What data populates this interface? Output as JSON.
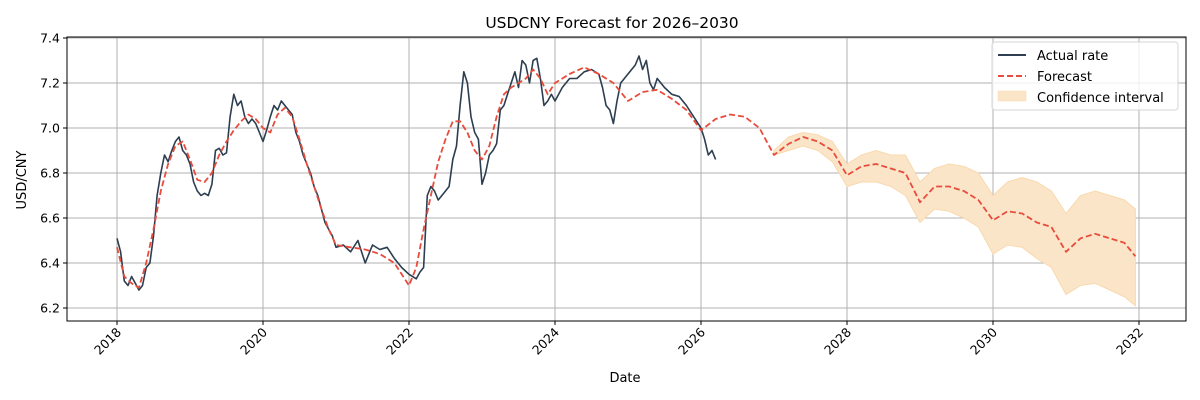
{
  "chart_data": {
    "type": "line",
    "title": "USDCNY Forecast for 2026–2030",
    "xlabel": "Date",
    "ylabel": "USD/CNY",
    "xlim": [
      2017.3,
      2032.6
    ],
    "ylim": [
      6.14,
      7.41
    ],
    "xticks": [
      2018,
      2020,
      2022,
      2024,
      2026,
      2028,
      2030,
      2032
    ],
    "yticks": [
      6.2,
      6.4,
      6.6,
      6.8,
      7.0,
      7.2,
      7.4
    ],
    "ytick_labels": [
      "6.2",
      "6.4",
      "6.6",
      "6.8",
      "7.0",
      "7.2",
      "7.4"
    ],
    "grid": true,
    "legend": {
      "position": "upper right",
      "entries": [
        "Actual rate",
        "Forecast",
        "Confidence interval"
      ]
    },
    "colors": {
      "actual": "#2c3e50",
      "forecast": "#e74c3c",
      "confidence": "#fbe5c8",
      "confidence_edge": "#f9d9ad",
      "grid": "#b0b0b0"
    },
    "series": [
      {
        "name": "Actual rate",
        "style": "solid",
        "x": [
          2018.0,
          2018.05,
          2018.1,
          2018.15,
          2018.2,
          2018.25,
          2018.3,
          2018.35,
          2018.4,
          2018.45,
          2018.5,
          2018.55,
          2018.6,
          2018.65,
          2018.7,
          2018.75,
          2018.8,
          2018.85,
          2018.9,
          2018.95,
          2019.0,
          2019.05,
          2019.1,
          2019.15,
          2019.2,
          2019.25,
          2019.3,
          2019.35,
          2019.4,
          2019.45,
          2019.5,
          2019.55,
          2019.6,
          2019.65,
          2019.7,
          2019.75,
          2019.8,
          2019.85,
          2019.9,
          2019.95,
          2020.0,
          2020.05,
          2020.1,
          2020.15,
          2020.2,
          2020.25,
          2020.3,
          2020.35,
          2020.4,
          2020.45,
          2020.5,
          2020.55,
          2020.6,
          2020.65,
          2020.7,
          2020.75,
          2020.8,
          2020.85,
          2020.9,
          2020.95,
          2021.0,
          2021.1,
          2021.2,
          2021.3,
          2021.4,
          2021.5,
          2021.6,
          2021.7,
          2021.8,
          2021.9,
          2022.0,
          2022.1,
          2022.15,
          2022.2,
          2022.25,
          2022.3,
          2022.35,
          2022.4,
          2022.45,
          2022.5,
          2022.55,
          2022.6,
          2022.65,
          2022.7,
          2022.75,
          2022.8,
          2022.85,
          2022.9,
          2022.95,
          2023.0,
          2023.05,
          2023.1,
          2023.15,
          2023.2,
          2023.25,
          2023.3,
          2023.35,
          2023.4,
          2023.45,
          2023.5,
          2023.55,
          2023.6,
          2023.65,
          2023.7,
          2023.75,
          2023.8,
          2023.85,
          2023.9,
          2023.95,
          2024.0,
          2024.1,
          2024.2,
          2024.3,
          2024.4,
          2024.5,
          2024.6,
          2024.65,
          2024.7,
          2024.75,
          2024.8,
          2024.85,
          2024.9,
          2025.0,
          2025.1,
          2025.15,
          2025.2,
          2025.25,
          2025.3,
          2025.35,
          2025.4,
          2025.5,
          2025.6,
          2025.7,
          2025.8,
          2025.9,
          2026.0,
          2026.05,
          2026.1,
          2026.15,
          2026.2
        ],
        "y": [
          6.51,
          6.45,
          6.32,
          6.3,
          6.34,
          6.31,
          6.28,
          6.3,
          6.38,
          6.4,
          6.52,
          6.7,
          6.8,
          6.88,
          6.85,
          6.9,
          6.94,
          6.96,
          6.9,
          6.88,
          6.84,
          6.76,
          6.72,
          6.7,
          6.71,
          6.7,
          6.75,
          6.9,
          6.91,
          6.88,
          6.89,
          7.05,
          7.15,
          7.1,
          7.12,
          7.05,
          7.02,
          7.04,
          7.02,
          6.98,
          6.94,
          6.99,
          7.05,
          7.1,
          7.08,
          7.12,
          7.1,
          7.08,
          7.06,
          6.98,
          6.94,
          6.88,
          6.84,
          6.8,
          6.74,
          6.7,
          6.64,
          6.58,
          6.55,
          6.52,
          6.47,
          6.48,
          6.45,
          6.5,
          6.4,
          6.48,
          6.46,
          6.47,
          6.42,
          6.38,
          6.35,
          6.33,
          6.36,
          6.38,
          6.7,
          6.74,
          6.72,
          6.68,
          6.7,
          6.72,
          6.74,
          6.86,
          6.92,
          7.1,
          7.25,
          7.2,
          7.05,
          6.98,
          6.95,
          6.75,
          6.8,
          6.88,
          6.9,
          6.93,
          7.08,
          7.1,
          7.15,
          7.2,
          7.25,
          7.18,
          7.3,
          7.28,
          7.2,
          7.3,
          7.31,
          7.22,
          7.1,
          7.12,
          7.15,
          7.12,
          7.18,
          7.22,
          7.22,
          7.25,
          7.26,
          7.24,
          7.18,
          7.1,
          7.08,
          7.02,
          7.12,
          7.2,
          7.24,
          7.28,
          7.32,
          7.26,
          7.3,
          7.2,
          7.17,
          7.22,
          7.18,
          7.15,
          7.14,
          7.1,
          7.05,
          7.0,
          6.95,
          6.88,
          6.9,
          6.86
        ]
      },
      {
        "name": "Forecast",
        "style": "dashed",
        "x": [
          2018.0,
          2018.1,
          2018.2,
          2018.3,
          2018.4,
          2018.5,
          2018.6,
          2018.7,
          2018.8,
          2018.9,
          2019.0,
          2019.1,
          2019.2,
          2019.3,
          2019.4,
          2019.5,
          2019.6,
          2019.7,
          2019.8,
          2019.9,
          2020.0,
          2020.1,
          2020.2,
          2020.3,
          2020.4,
          2020.5,
          2020.6,
          2020.7,
          2020.8,
          2020.9,
          2021.0,
          2021.2,
          2021.4,
          2021.6,
          2021.8,
          2022.0,
          2022.1,
          2022.2,
          2022.3,
          2022.4,
          2022.5,
          2022.6,
          2022.7,
          2022.8,
          2022.9,
          2023.0,
          2023.1,
          2023.2,
          2023.3,
          2023.4,
          2023.5,
          2023.6,
          2023.7,
          2023.8,
          2023.9,
          2024.0,
          2024.2,
          2024.4,
          2024.6,
          2024.8,
          2025.0,
          2025.2,
          2025.4,
          2025.6,
          2025.8,
          2026.0,
          2026.2,
          2026.4,
          2026.6,
          2026.8,
          2027.0,
          2027.2,
          2027.4,
          2027.6,
          2027.8,
          2028.0,
          2028.2,
          2028.4,
          2028.6,
          2028.8,
          2029.0,
          2029.2,
          2029.4,
          2029.6,
          2029.8,
          2030.0,
          2030.2,
          2030.4,
          2030.6,
          2030.8,
          2031.0,
          2031.2,
          2031.4,
          2031.6,
          2031.8,
          2031.95
        ],
        "y": [
          6.47,
          6.34,
          6.31,
          6.29,
          6.4,
          6.55,
          6.72,
          6.84,
          6.92,
          6.94,
          6.86,
          6.77,
          6.76,
          6.8,
          6.88,
          6.94,
          6.99,
          7.03,
          7.06,
          7.04,
          7.0,
          6.98,
          7.06,
          7.09,
          7.05,
          6.95,
          6.84,
          6.74,
          6.64,
          6.55,
          6.48,
          6.47,
          6.46,
          6.44,
          6.4,
          6.3,
          6.38,
          6.55,
          6.7,
          6.85,
          6.95,
          7.03,
          7.03,
          6.98,
          6.9,
          6.86,
          6.92,
          7.05,
          7.15,
          7.18,
          7.2,
          7.22,
          7.26,
          7.22,
          7.15,
          7.2,
          7.24,
          7.27,
          7.24,
          7.2,
          7.12,
          7.16,
          7.17,
          7.13,
          7.08,
          6.99,
          7.04,
          7.06,
          7.05,
          7.0,
          6.88,
          6.93,
          6.96,
          6.94,
          6.9,
          6.79,
          6.83,
          6.84,
          6.82,
          6.8,
          6.67,
          6.74,
          6.74,
          6.72,
          6.68,
          6.59,
          6.63,
          6.62,
          6.58,
          6.56,
          6.45,
          6.51,
          6.53,
          6.51,
          6.49,
          6.43
        ]
      }
    ],
    "confidence_interval": {
      "name": "Confidence interval",
      "x": [
        2027.0,
        2027.2,
        2027.4,
        2027.6,
        2027.8,
        2028.0,
        2028.2,
        2028.4,
        2028.6,
        2028.8,
        2029.0,
        2029.2,
        2029.4,
        2029.6,
        2029.8,
        2030.0,
        2030.2,
        2030.4,
        2030.6,
        2030.8,
        2031.0,
        2031.2,
        2031.4,
        2031.6,
        2031.8,
        2031.95
      ],
      "upper": [
        6.9,
        6.96,
        6.98,
        6.97,
        6.94,
        6.84,
        6.88,
        6.9,
        6.88,
        6.88,
        6.76,
        6.82,
        6.84,
        6.83,
        6.8,
        6.7,
        6.76,
        6.78,
        6.76,
        6.72,
        6.62,
        6.7,
        6.72,
        6.7,
        6.68,
        6.64
      ],
      "lower": [
        6.88,
        6.9,
        6.92,
        6.9,
        6.85,
        6.74,
        6.76,
        6.76,
        6.74,
        6.7,
        6.58,
        6.64,
        6.63,
        6.6,
        6.56,
        6.44,
        6.48,
        6.47,
        6.42,
        6.38,
        6.26,
        6.3,
        6.31,
        6.28,
        6.25,
        6.21
      ]
    }
  }
}
